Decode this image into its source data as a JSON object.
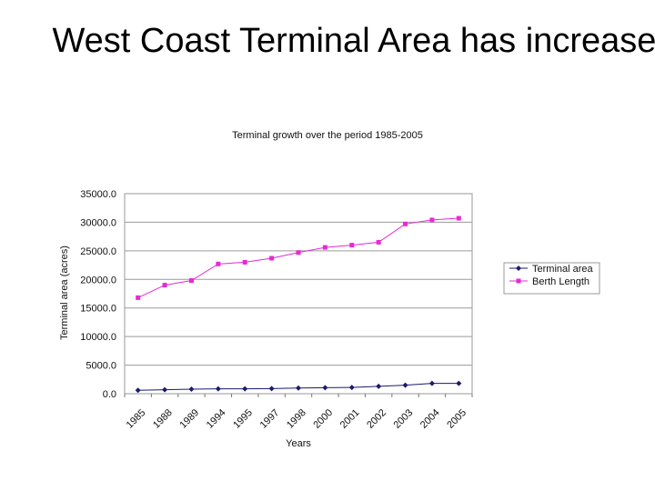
{
  "slide": {
    "title": "West Coast Terminal Area has increased"
  },
  "chart_data": {
    "type": "line",
    "title": "Terminal growth over the period 1985-2005",
    "xlabel": "Years",
    "ylabel": "Terminal area (acres)",
    "categories": [
      "1985",
      "1988",
      "1989",
      "1994",
      "1995",
      "1997",
      "1998",
      "2000",
      "2001",
      "2002",
      "2003",
      "2004",
      "2005"
    ],
    "series": [
      {
        "name": "Terminal area",
        "color": "#1a1a6e",
        "marker": "diamond",
        "values": [
          600,
          700,
          800,
          850,
          850,
          900,
          1000,
          1050,
          1100,
          1300,
          1500,
          1800,
          1800
        ]
      },
      {
        "name": "Berth Length",
        "color": "#e62ad6",
        "marker": "square",
        "values": [
          16800,
          19000,
          19800,
          22700,
          23000,
          23700,
          24700,
          25600,
          26000,
          26500,
          29700,
          30400,
          30700
        ]
      }
    ],
    "y_ticks": [
      "35000.0",
      "30000.0",
      "25000.0",
      "20000.0",
      "15000.0",
      "10000.0",
      "5000.0",
      "0.0"
    ],
    "ylim": [
      0,
      35000
    ],
    "grid": true,
    "legend": "right"
  }
}
